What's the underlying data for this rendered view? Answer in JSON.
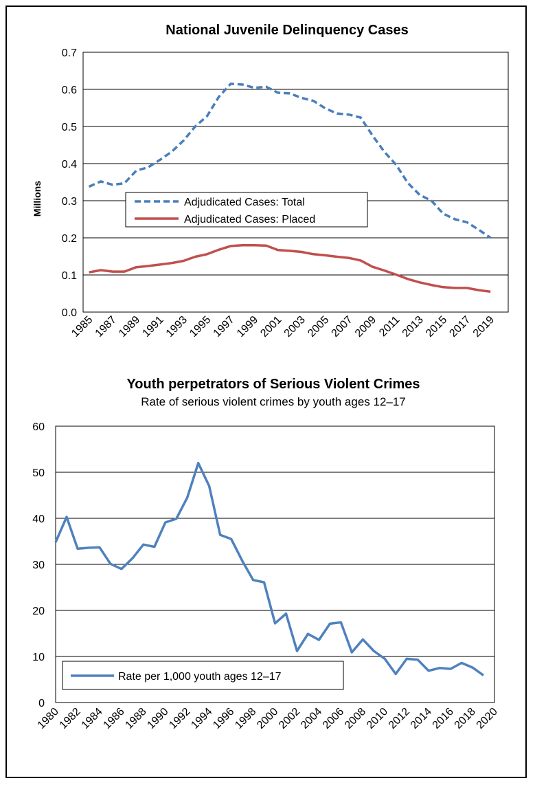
{
  "colors": {
    "total": "#4a7ebb",
    "placed": "#c0504d",
    "rate": "#4f81bd",
    "grid": "#000000"
  },
  "chart_data": [
    {
      "type": "line",
      "title": "National Juvenile Delinquency Cases",
      "ylabel": "Millions",
      "ylim": [
        0,
        0.7
      ],
      "yticks": [
        "0.0",
        "0.1",
        "0.2",
        "0.3",
        "0.4",
        "0.5",
        "0.6",
        "0.7"
      ],
      "xticks": [
        "1985",
        "1987",
        "1989",
        "1991",
        "1993",
        "1995",
        "1997",
        "1999",
        "2001",
        "2003",
        "2005",
        "2007",
        "2009",
        "2011",
        "2013",
        "2015",
        "2017",
        "2019"
      ],
      "x": [
        1985,
        1986,
        1987,
        1988,
        1989,
        1990,
        1991,
        1992,
        1993,
        1994,
        1995,
        1996,
        1997,
        1998,
        1999,
        2000,
        2001,
        2002,
        2003,
        2004,
        2005,
        2006,
        2007,
        2008,
        2009,
        2010,
        2011,
        2012,
        2013,
        2014,
        2015,
        2016,
        2017,
        2018,
        2019
      ],
      "series": [
        {
          "name": "Adjudicated Cases: Total",
          "values": [
            0.338,
            0.352,
            0.343,
            0.347,
            0.381,
            0.39,
            0.41,
            0.432,
            0.462,
            0.5,
            0.528,
            0.58,
            0.615,
            0.613,
            0.604,
            0.607,
            0.591,
            0.589,
            0.577,
            0.569,
            0.549,
            0.535,
            0.532,
            0.524,
            0.476,
            0.432,
            0.397,
            0.348,
            0.316,
            0.3,
            0.265,
            0.25,
            0.242,
            0.222,
            0.2
          ],
          "style": "dashed"
        },
        {
          "name": "Adjudicated Cases: Placed",
          "values": [
            0.107,
            0.113,
            0.109,
            0.109,
            0.121,
            0.124,
            0.128,
            0.132,
            0.138,
            0.149,
            0.156,
            0.168,
            0.178,
            0.18,
            0.18,
            0.179,
            0.167,
            0.165,
            0.162,
            0.156,
            0.153,
            0.149,
            0.146,
            0.139,
            0.122,
            0.112,
            0.101,
            0.089,
            0.08,
            0.073,
            0.067,
            0.065,
            0.065,
            0.059,
            0.055
          ],
          "style": "solid"
        }
      ],
      "legend": "center-left"
    },
    {
      "type": "line",
      "title": "Youth perpetrators of Serious Violent Crimes",
      "subtitle": "Rate of serious violent crimes by youth ages 12–17",
      "ylim": [
        0,
        60
      ],
      "yticks": [
        "0",
        "10",
        "20",
        "30",
        "40",
        "50",
        "60"
      ],
      "xticks": [
        "1980",
        "1982",
        "1984",
        "1986",
        "1988",
        "1990",
        "1992",
        "1994",
        "1996",
        "1998",
        "2000",
        "2002",
        "2004",
        "2006",
        "2008",
        "2010",
        "2012",
        "2014",
        "2016",
        "2018",
        "2020"
      ],
      "x": [
        1980,
        1981,
        1982,
        1983,
        1984,
        1985,
        1986,
        1987,
        1988,
        1989,
        1990,
        1991,
        1992,
        1993,
        1994,
        1995,
        1996,
        1997,
        1998,
        1999,
        2000,
        2001,
        2002,
        2003,
        2004,
        2005,
        2006,
        2007,
        2008,
        2009,
        2010,
        2011,
        2012,
        2013,
        2014,
        2015,
        2016,
        2017,
        2018,
        2019
      ],
      "series": [
        {
          "name": "Rate per 1,000 youth ages 12–17",
          "values": [
            34.8,
            40.3,
            33.4,
            33.6,
            33.7,
            30.1,
            29.0,
            31.3,
            34.3,
            33.8,
            39.1,
            39.9,
            44.5,
            52.0,
            47.0,
            36.4,
            35.5,
            30.8,
            26.6,
            26.1,
            17.2,
            19.3,
            11.2,
            14.9,
            13.6,
            17.1,
            17.4,
            10.9,
            13.7,
            11.2,
            9.5,
            6.2,
            9.5,
            9.3,
            6.9,
            7.5,
            7.3,
            8.6,
            7.6,
            5.9
          ]
        }
      ],
      "legend": "bottom-left"
    }
  ]
}
